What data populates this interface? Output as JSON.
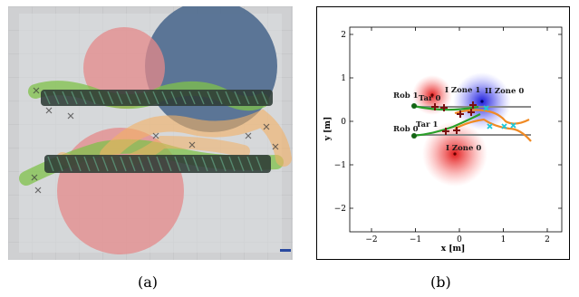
{
  "panel_a": {
    "caption": "(a)"
  },
  "panel_b": {
    "caption": "(b)",
    "x_axis_label": "x [m]",
    "y_axis_label": "y [m]",
    "x_ticks": [
      "−2",
      "−1",
      "0",
      "1",
      "2"
    ],
    "y_ticks": [
      "2",
      "1",
      "0",
      "−1",
      "−2"
    ],
    "labels": {
      "rob1": "Rob 1",
      "rob0": "Rob 0",
      "tar0": "Tar 0",
      "tar1": "Tar 1",
      "izone1": "I Zone 1",
      "izone0": "I Zone 0",
      "iizone0": "II Zone 0"
    }
  },
  "colors": {
    "red_zone": "#e84a4a",
    "blue_zone": "#2a2ad8",
    "green_path": "#2aa02a",
    "orange_path": "#f08a24",
    "cyan_marker": "#20c8d8",
    "dark_red_marker": "#7a1010",
    "gray_track": "#888888"
  }
}
